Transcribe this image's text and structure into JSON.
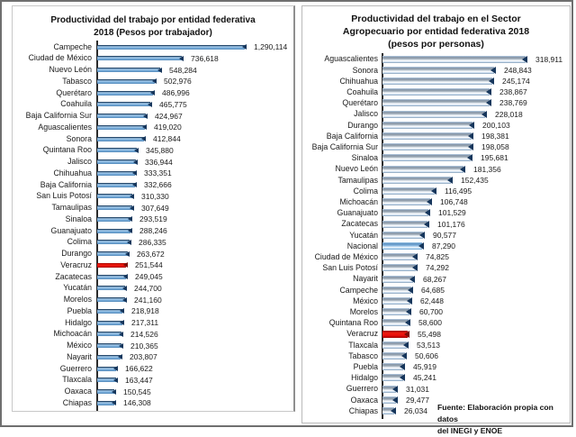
{
  "colors": {
    "bar_blue": "#7FB2DE",
    "bar_tip_navy": "#16365C",
    "bar_red_veracruz": "#E00C0C",
    "bar_steel_gray_blue": "#9AB0C4",
    "bar_highlight_nacional": "#7FB0DC",
    "axis_black": "#2B2B2B",
    "text_black": "#1A1A1A",
    "panel_border_gray": "#C8C8C8",
    "outer_border_gray": "#6F6F6F"
  },
  "source_note": {
    "line1": "Fuente: Elaboración propia con datos",
    "line2": "del INEGI y ENOE"
  },
  "chart_data": [
    {
      "id": "left",
      "type": "bar",
      "orientation": "horizontal",
      "title_lines": [
        "Productividad del trabajo por entidad federativa",
        "2018 (Pesos por trabajador)"
      ],
      "xlabel": "",
      "ylabel": "",
      "grid": false,
      "legend": false,
      "data_labels": "value at end of each bar, thousands separated by commas",
      "categories": [
        "Campeche",
        "Ciudad de México",
        "Nuevo León",
        "Tabasco",
        "Querétaro",
        "Coahuila",
        "Baja California Sur",
        "Aguascalientes",
        "Sonora",
        "Quintana Roo",
        "Jalisco",
        "Chihuahua",
        "Baja California",
        "San Luis Potosí",
        "Tamaulipas",
        "Sinaloa",
        "Guanajuato",
        "Colima",
        "Durango",
        "Veracruz",
        "Zacatecas",
        "Yucatán",
        "Morelos",
        "Puebla",
        "Hidalgo",
        "Michoacán",
        "México",
        "Nayarit",
        "Guerrero",
        "Tlaxcala",
        "Oaxaca",
        "Chiapas"
      ],
      "values": [
        1290114,
        736618,
        548284,
        502976,
        486996,
        465775,
        424967,
        419020,
        412844,
        345880,
        336944,
        333351,
        332666,
        310330,
        307649,
        293519,
        288246,
        286335,
        263672,
        251544,
        249045,
        244700,
        241160,
        218918,
        217311,
        214526,
        210365,
        203807,
        166622,
        163447,
        150545,
        146308
      ],
      "highlights": [
        {
          "category": "Veracruz",
          "color": "#E00C0C"
        }
      ]
    },
    {
      "id": "right",
      "type": "bar",
      "orientation": "horizontal",
      "title_lines": [
        "Productividad del trabajo en el Sector",
        "Agropecuario por entidad federativa 2018",
        "(pesos por personas)"
      ],
      "xlabel": "",
      "ylabel": "",
      "grid": false,
      "legend": false,
      "data_labels": "value at end of each bar, thousands separated by commas",
      "categories": [
        "Aguascalientes",
        "Sonora",
        "Chihuahua",
        "Coahuila",
        "Querétaro",
        "Jalisco",
        "Durango",
        "Baja California",
        "Baja California Sur",
        "Sinaloa",
        "Nuevo León",
        "Tamaulipas",
        "Colima",
        "Michoacán",
        "Guanajuato",
        "Zacatecas",
        "Yucatán",
        "Nacional",
        "Ciudad de México",
        "San Luis Potosí",
        "Nayarit",
        "Campeche",
        "México",
        "Morelos",
        "Quintana Roo",
        "Veracruz",
        "Tlaxcala",
        "Tabasco",
        "Puebla",
        "Hidalgo",
        "Guerrero",
        "Oaxaca",
        "Chiapas"
      ],
      "values": [
        318911,
        248843,
        245174,
        238867,
        238769,
        228018,
        200103,
        198381,
        198058,
        195681,
        181356,
        152435,
        116495,
        106748,
        101529,
        101176,
        90577,
        87290,
        74825,
        74292,
        68267,
        64685,
        62448,
        60700,
        58600,
        55498,
        53513,
        50606,
        45919,
        45241,
        31031,
        29477,
        26034
      ],
      "highlights": [
        {
          "category": "Veracruz",
          "color": "#E00C0C"
        },
        {
          "category": "Nacional",
          "color": "#7FB0DC"
        }
      ]
    }
  ]
}
